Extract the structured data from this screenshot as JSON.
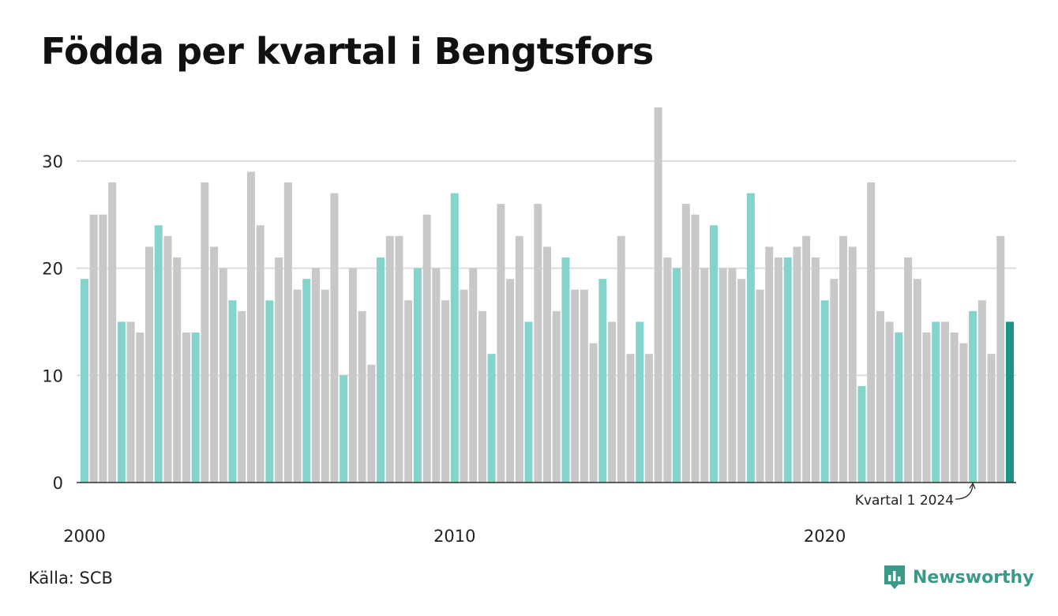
{
  "header": {
    "title": "Födda per kvartal i Bengtsfors"
  },
  "footer": {
    "source": "Källa: SCB",
    "brand": "Newsworthy"
  },
  "colors": {
    "q1": "#84d4cc",
    "other": "#c8c8c8",
    "latest": "#1e9284",
    "grid": "#dddddd",
    "axis": "#333333"
  },
  "chart_data": {
    "type": "bar",
    "title": "Födda per kvartal i Bengtsfors",
    "xlabel": "",
    "ylabel": "",
    "ylim": [
      0,
      35
    ],
    "yticks": [
      0,
      10,
      20,
      30
    ],
    "xtick_labels": [
      {
        "label": "2000",
        "year": 2000
      },
      {
        "label": "2010",
        "year": 2010
      },
      {
        "label": "2020",
        "year": 2020
      }
    ],
    "start_year": 2000,
    "annotation": {
      "text": "Kvartal 1 2024",
      "index": 96
    },
    "grid": true,
    "values": [
      19,
      25,
      25,
      28,
      15,
      15,
      14,
      22,
      24,
      23,
      21,
      14,
      14,
      28,
      22,
      20,
      17,
      16,
      29,
      24,
      17,
      21,
      28,
      18,
      19,
      20,
      18,
      27,
      10,
      20,
      16,
      11,
      21,
      23,
      23,
      17,
      20,
      25,
      20,
      17,
      27,
      18,
      20,
      16,
      12,
      26,
      19,
      23,
      15,
      26,
      22,
      16,
      21,
      18,
      18,
      13,
      19,
      15,
      23,
      12,
      15,
      12,
      35,
      21,
      20,
      26,
      25,
      20,
      24,
      20,
      20,
      19,
      27,
      18,
      22,
      21,
      21,
      22,
      23,
      21,
      17,
      19,
      23,
      22,
      9,
      28,
      16,
      15,
      14,
      21,
      19,
      14,
      15,
      15,
      14,
      13,
      16,
      17,
      12,
      23,
      15
    ]
  }
}
